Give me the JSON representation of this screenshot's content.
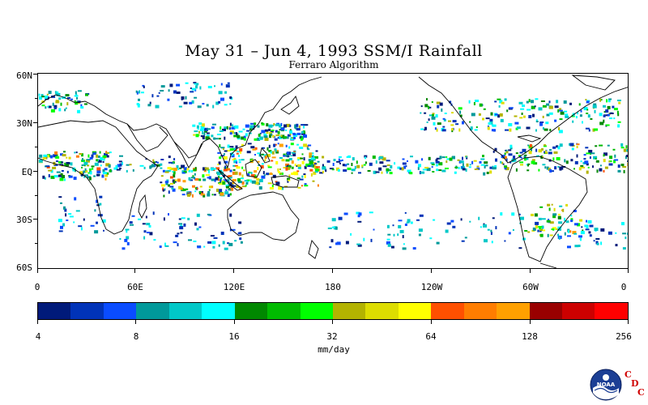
{
  "header": {
    "title": "May 31 – Jun 4, 1993 SSM/I Rainfall",
    "subtitle": "Ferraro Algorithm"
  },
  "map": {
    "lat_labels": [
      "60N",
      "30N",
      "EQ",
      "30S",
      "60S"
    ],
    "lon_labels": [
      "0",
      "60E",
      "120E",
      "180",
      "120W",
      "60W",
      "0"
    ],
    "lon_range": [
      0,
      360
    ],
    "lat_range": [
      -60,
      60
    ]
  },
  "colorbar": {
    "colors": [
      "#001a7a",
      "#0033b8",
      "#0a4cff",
      "#00999a",
      "#00c8c8",
      "#00ffff",
      "#008800",
      "#00bb00",
      "#00ff00",
      "#b3b300",
      "#dddd00",
      "#ffff00",
      "#ff5000",
      "#ff7d00",
      "#ffa000",
      "#990000",
      "#cc0000",
      "#ff0000"
    ],
    "tick_labels": [
      "4",
      "8",
      "16",
      "32",
      "64",
      "128",
      "256"
    ],
    "unit": "mm/day"
  },
  "logo": {
    "icon": "noaa-logo-icon",
    "text": "NOAA",
    "cdc_letters": [
      "C",
      "D",
      "C"
    ]
  }
}
